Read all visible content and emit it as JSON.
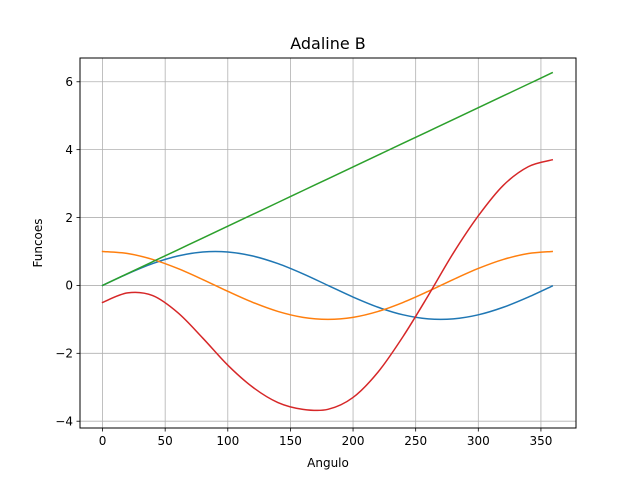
{
  "chart_data": {
    "type": "line",
    "title": "Adaline B",
    "xlabel": "Angulo",
    "ylabel": "Funcoes",
    "xlim": [
      -18,
      378
    ],
    "ylim": [
      -4.2,
      6.7
    ],
    "xticks": [
      0,
      50,
      100,
      150,
      200,
      250,
      300,
      350
    ],
    "yticks": [
      -4,
      -2,
      0,
      2,
      4,
      6
    ],
    "ytick_labels": [
      "−4",
      "−2",
      "0",
      "2",
      "4",
      "6"
    ],
    "grid": true,
    "legend": "none",
    "x": [
      0,
      20,
      40,
      60,
      80,
      100,
      120,
      140,
      160,
      180,
      200,
      220,
      240,
      260,
      280,
      300,
      320,
      340,
      359
    ],
    "series": [
      {
        "color": "#1f77b4",
        "values": [
          0,
          0.342,
          0.643,
          0.866,
          0.985,
          0.985,
          0.866,
          0.643,
          0.342,
          0,
          -0.342,
          -0.643,
          -0.866,
          -0.985,
          -0.985,
          -0.866,
          -0.643,
          -0.342,
          -0.017
        ]
      },
      {
        "color": "#ff7f0e",
        "values": [
          1,
          0.94,
          0.766,
          0.5,
          0.174,
          -0.174,
          -0.5,
          -0.766,
          -0.94,
          -1,
          -0.94,
          -0.766,
          -0.5,
          -0.174,
          0.174,
          0.5,
          0.766,
          0.94,
          1
        ]
      },
      {
        "color": "#2ca02c",
        "values": [
          0,
          0.349,
          0.698,
          1.047,
          1.396,
          1.745,
          2.094,
          2.443,
          2.793,
          3.142,
          3.491,
          3.84,
          4.189,
          4.538,
          4.887,
          5.236,
          5.585,
          5.934,
          6.266
        ]
      },
      {
        "color": "#d62728",
        "values": [
          -0.5,
          -0.22,
          -0.3,
          -0.8,
          -1.55,
          -2.35,
          -3.0,
          -3.45,
          -3.65,
          -3.65,
          -3.3,
          -2.55,
          -1.5,
          -0.3,
          0.95,
          2.05,
          2.95,
          3.5,
          3.7
        ]
      }
    ]
  }
}
